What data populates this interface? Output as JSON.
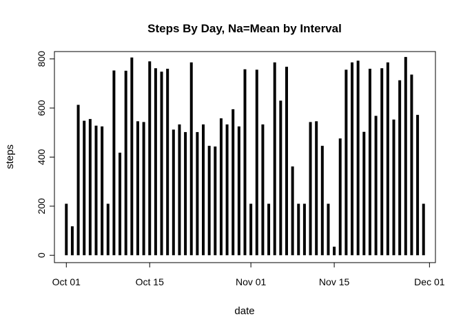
{
  "chart_data": {
    "type": "bar",
    "title": "Steps By Day, Na=Mean by Interval",
    "xlabel": "date",
    "ylabel": "steps",
    "x_ticks": [
      "Oct 01",
      "Oct 15",
      "Nov 01",
      "Nov 15",
      "Dec 01"
    ],
    "x_tick_dates": [
      "2012-10-01",
      "2012-10-15",
      "2012-11-01",
      "2012-11-15",
      "2012-12-01"
    ],
    "y_ticks": [
      0,
      200,
      400,
      600,
      800
    ],
    "xlim": [
      "2012-09-29",
      "2012-12-02"
    ],
    "ylim": [
      -30,
      830
    ],
    "grid": false,
    "color": "#000000",
    "x": [
      "2012-10-01",
      "2012-10-02",
      "2012-10-03",
      "2012-10-04",
      "2012-10-05",
      "2012-10-06",
      "2012-10-07",
      "2012-10-08",
      "2012-10-09",
      "2012-10-10",
      "2012-10-11",
      "2012-10-12",
      "2012-10-13",
      "2012-10-14",
      "2012-10-15",
      "2012-10-16",
      "2012-10-17",
      "2012-10-18",
      "2012-10-19",
      "2012-10-20",
      "2012-10-21",
      "2012-10-22",
      "2012-10-23",
      "2012-10-24",
      "2012-10-25",
      "2012-10-26",
      "2012-10-27",
      "2012-10-28",
      "2012-10-29",
      "2012-10-30",
      "2012-10-31",
      "2012-11-01",
      "2012-11-02",
      "2012-11-03",
      "2012-11-04",
      "2012-11-05",
      "2012-11-06",
      "2012-11-07",
      "2012-11-08",
      "2012-11-09",
      "2012-11-10",
      "2012-11-11",
      "2012-11-12",
      "2012-11-13",
      "2012-11-14",
      "2012-11-15",
      "2012-11-16",
      "2012-11-17",
      "2012-11-18",
      "2012-11-19",
      "2012-11-20",
      "2012-11-21",
      "2012-11-22",
      "2012-11-23",
      "2012-11-24",
      "2012-11-25",
      "2012-11-26",
      "2012-11-27",
      "2012-11-28",
      "2012-11-29",
      "2012-11-30"
    ],
    "values": [
      210,
      118,
      613,
      548,
      555,
      528,
      525,
      210,
      753,
      418,
      752,
      806,
      546,
      543,
      790,
      762,
      748,
      760,
      512,
      533,
      502,
      786,
      502,
      533,
      446,
      443,
      558,
      533,
      595,
      525,
      758,
      210,
      756,
      533,
      210,
      786,
      630,
      768,
      362,
      210,
      210,
      543,
      546,
      446,
      210,
      35,
      476,
      756,
      786,
      793,
      503,
      760,
      568,
      762,
      786,
      553,
      713,
      808,
      736,
      572,
      210
    ]
  }
}
